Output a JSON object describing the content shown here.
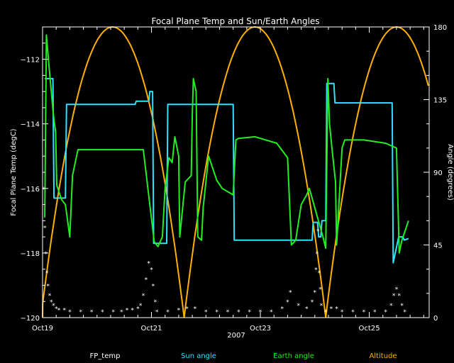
{
  "chart_data": {
    "type": "line",
    "title": "Focal Plane Temp and Sun/Earth Angles",
    "xlabel": "2007",
    "ylabel_left": "Focal Plane Temp (degC)",
    "ylabel_right": "Angle (degrees)",
    "x_unit": "days since Oct19 00:00",
    "xlim": [
      0,
      7.1
    ],
    "ylim_left": [
      -120,
      -111
    ],
    "ylim_right": [
      0,
      180
    ],
    "x_ticks": [
      {
        "x": 0,
        "label": "Oct19"
      },
      {
        "x": 2,
        "label": "Oct21"
      },
      {
        "x": 4,
        "label": "Oct23"
      },
      {
        "x": 6,
        "label": "Oct25"
      }
    ],
    "y_ticks_left": [
      {
        "v": -120,
        "label": "−120"
      },
      {
        "v": -118,
        "label": "−118"
      },
      {
        "v": -116,
        "label": "−116"
      },
      {
        "v": -114,
        "label": "−114"
      },
      {
        "v": -112,
        "label": "−112"
      }
    ],
    "y_ticks_right": [
      {
        "v": 0,
        "label": "0"
      },
      {
        "v": 45,
        "label": "45"
      },
      {
        "v": 90,
        "label": "90"
      },
      {
        "v": 135,
        "label": "135"
      },
      {
        "v": 180,
        "label": "180"
      }
    ],
    "colors": {
      "fp_temp": "#ffffff",
      "sun_angle": "#33e0ff",
      "earth_angle": "#22ee22",
      "altitude": "#ffb000",
      "axes": "#ffffff"
    },
    "legend": [
      {
        "key": "fp_temp",
        "label": "FP_temp"
      },
      {
        "key": "sun_angle",
        "label": "Sun angle"
      },
      {
        "key": "earth_angle",
        "label": "Earth angle"
      },
      {
        "key": "altitude",
        "label": "Altitude"
      }
    ],
    "series": [
      {
        "key": "sun_angle",
        "axis": "right",
        "style": "line",
        "points": [
          [
            0.04,
            148
          ],
          [
            0.19,
            148
          ],
          [
            0.21,
            74
          ],
          [
            0.42,
            74
          ],
          [
            0.44,
            132
          ],
          [
            1.7,
            132
          ],
          [
            1.72,
            134
          ],
          [
            1.95,
            134
          ],
          [
            1.97,
            140
          ],
          [
            2.02,
            140
          ],
          [
            2.04,
            46
          ],
          [
            2.28,
            46
          ],
          [
            2.3,
            132
          ],
          [
            3.5,
            132
          ],
          [
            3.52,
            48
          ],
          [
            4.95,
            48
          ],
          [
            4.97,
            59
          ],
          [
            5.05,
            59
          ],
          [
            5.07,
            50
          ],
          [
            5.11,
            50
          ],
          [
            5.13,
            60
          ],
          [
            5.2,
            60
          ],
          [
            5.22,
            145
          ],
          [
            5.35,
            145
          ],
          [
            5.37,
            133
          ],
          [
            6.42,
            133
          ],
          [
            6.44,
            34
          ],
          [
            6.54,
            50
          ],
          [
            6.62,
            50
          ],
          [
            6.64,
            48
          ],
          [
            6.72,
            49
          ]
        ]
      },
      {
        "key": "earth_angle",
        "axis": "right",
        "style": "line",
        "points": [
          [
            0.04,
            62
          ],
          [
            0.07,
            175
          ],
          [
            0.12,
            155
          ],
          [
            0.2,
            125
          ],
          [
            0.24,
            115
          ],
          [
            0.26,
            82
          ],
          [
            0.35,
            73
          ],
          [
            0.42,
            70
          ],
          [
            0.5,
            50
          ],
          [
            0.55,
            88
          ],
          [
            0.65,
            104
          ],
          [
            1.2,
            104
          ],
          [
            1.85,
            104
          ],
          [
            2.05,
            47
          ],
          [
            2.12,
            44
          ],
          [
            2.2,
            50
          ],
          [
            2.25,
            80
          ],
          [
            2.32,
            99
          ],
          [
            2.38,
            96
          ],
          [
            2.43,
            112
          ],
          [
            2.5,
            100
          ],
          [
            2.52,
            50
          ],
          [
            2.62,
            84
          ],
          [
            2.73,
            88
          ],
          [
            2.75,
            126
          ],
          [
            2.77,
            148
          ],
          [
            2.82,
            140
          ],
          [
            2.85,
            50
          ],
          [
            2.92,
            48
          ],
          [
            2.95,
            68
          ],
          [
            3.05,
            100
          ],
          [
            3.2,
            85
          ],
          [
            3.3,
            80
          ],
          [
            3.5,
            76
          ],
          [
            3.55,
            110
          ],
          [
            3.6,
            111
          ],
          [
            3.9,
            112
          ],
          [
            4.3,
            108
          ],
          [
            4.5,
            99
          ],
          [
            4.57,
            45
          ],
          [
            4.65,
            48
          ],
          [
            4.75,
            70
          ],
          [
            4.85,
            76
          ],
          [
            4.9,
            80
          ],
          [
            5.15,
            50
          ],
          [
            5.2,
            43
          ],
          [
            5.24,
            148
          ],
          [
            5.27,
            120
          ],
          [
            5.33,
            100
          ],
          [
            5.38,
            84
          ],
          [
            5.4,
            45
          ],
          [
            5.5,
            105
          ],
          [
            5.55,
            110
          ],
          [
            5.9,
            110
          ],
          [
            6.3,
            108
          ],
          [
            6.5,
            105
          ],
          [
            6.55,
            40
          ],
          [
            6.6,
            48
          ],
          [
            6.7,
            58
          ],
          [
            6.72,
            60
          ]
        ]
      },
      {
        "key": "altitude",
        "axis": "right",
        "style": "parabolas",
        "arcs": [
          {
            "start": -0.03,
            "end": 2.6,
            "peak": 180
          },
          {
            "start": 2.6,
            "end": 5.2,
            "peak": 180
          },
          {
            "start": 5.2,
            "end": 7.8,
            "peak": 180
          }
        ]
      },
      {
        "key": "fp_temp",
        "axis": "left",
        "style": "markers",
        "points": [
          [
            0.02,
            -116.0
          ],
          [
            0.04,
            -117.2
          ],
          [
            0.06,
            -118.0
          ],
          [
            0.08,
            -118.6
          ],
          [
            0.1,
            -119.0
          ],
          [
            0.13,
            -119.3
          ],
          [
            0.16,
            -119.5
          ],
          [
            0.2,
            -119.6
          ],
          [
            0.25,
            -119.7
          ],
          [
            0.3,
            -119.75
          ],
          [
            0.4,
            -119.75
          ],
          [
            0.5,
            -119.8
          ],
          [
            0.7,
            -119.8
          ],
          [
            0.9,
            -119.8
          ],
          [
            1.1,
            -119.8
          ],
          [
            1.3,
            -119.8
          ],
          [
            1.45,
            -119.8
          ],
          [
            1.55,
            -119.75
          ],
          [
            1.65,
            -119.75
          ],
          [
            1.75,
            -119.7
          ],
          [
            1.8,
            -119.6
          ],
          [
            1.85,
            -119.3
          ],
          [
            1.9,
            -118.8
          ],
          [
            1.95,
            -118.3
          ],
          [
            2.0,
            -118.5
          ],
          [
            2.03,
            -119.0
          ],
          [
            2.07,
            -119.5
          ],
          [
            2.1,
            -119.8
          ],
          [
            2.3,
            -119.8
          ],
          [
            2.5,
            -119.75
          ],
          [
            2.65,
            -119.7
          ],
          [
            2.8,
            -119.7
          ],
          [
            3.0,
            -119.8
          ],
          [
            3.2,
            -119.8
          ],
          [
            3.4,
            -119.8
          ],
          [
            3.6,
            -119.8
          ],
          [
            3.8,
            -119.8
          ],
          [
            4.0,
            -119.8
          ],
          [
            4.2,
            -119.8
          ],
          [
            4.4,
            -119.7
          ],
          [
            4.5,
            -119.5
          ],
          [
            4.55,
            -119.2
          ],
          [
            4.7,
            -119.6
          ],
          [
            4.85,
            -119.7
          ],
          [
            4.95,
            -119.5
          ],
          [
            5.0,
            -119.2
          ],
          [
            5.02,
            -118.5
          ],
          [
            5.04,
            -118.0
          ],
          [
            5.06,
            -117.3
          ],
          [
            5.08,
            -118.6
          ],
          [
            5.1,
            -119.1
          ],
          [
            5.12,
            -119.6
          ],
          [
            5.2,
            -119.8
          ],
          [
            5.3,
            -119.7
          ],
          [
            5.4,
            -119.7
          ],
          [
            5.5,
            -119.8
          ],
          [
            5.7,
            -119.8
          ],
          [
            5.9,
            -119.8
          ],
          [
            6.1,
            -119.8
          ],
          [
            6.3,
            -119.8
          ],
          [
            6.4,
            -119.6
          ],
          [
            6.45,
            -119.3
          ],
          [
            6.5,
            -119.1
          ],
          [
            6.55,
            -119.3
          ],
          [
            6.6,
            -119.6
          ],
          [
            6.65,
            -119.8
          ]
        ]
      }
    ]
  }
}
